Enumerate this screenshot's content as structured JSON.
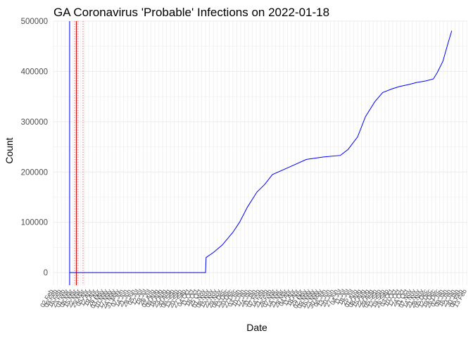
{
  "chart_data": {
    "type": "line",
    "title": "GA Coronavirus 'Probable' Infections on 2022-01-18",
    "xlabel": "Date",
    "ylabel": "Count",
    "x_type": "date",
    "xlim": [
      "2020-02-02",
      "2022-02-14"
    ],
    "ylim": [
      -25000,
      500000
    ],
    "y_ticks": [
      0,
      100000,
      200000,
      300000,
      400000,
      500000
    ],
    "y_tick_labels": [
      "0",
      "100000",
      "200000",
      "300000",
      "400000",
      "500000"
    ],
    "x_tick_step_days": 7,
    "x_tick_label_format": "day-month",
    "grid": true,
    "colors": {
      "series": "#0000ff",
      "vline_solid": "#cc0000",
      "vline_dotted": "#ff6666",
      "grid": "#ebebeb"
    },
    "vlines": [
      {
        "x": "2020-03-02",
        "style": "solid",
        "color": "#0000ff"
      },
      {
        "x": "2020-03-14",
        "style": "solid",
        "color": "#cc0000"
      },
      {
        "x": "2020-03-11",
        "style": "dotted",
        "color": "#ff6666"
      },
      {
        "x": "2020-03-17",
        "style": "dotted",
        "color": "#ff6666"
      },
      {
        "x": "2020-03-26",
        "style": "dotted",
        "color": "#ff6666"
      }
    ],
    "series": [
      {
        "x": [
          "2020-03-02",
          "2020-06-01",
          "2020-09-01",
          "2020-11-01",
          "2020-11-02",
          "2020-11-15",
          "2020-12-01",
          "2020-12-20",
          "2021-01-01",
          "2021-01-15",
          "2021-02-01",
          "2021-02-15",
          "2021-03-01",
          "2021-04-01",
          "2021-05-01",
          "2021-06-01",
          "2021-07-01",
          "2021-07-15",
          "2021-08-01",
          "2021-08-15",
          "2021-09-01",
          "2021-09-15",
          "2021-10-01",
          "2021-10-15",
          "2021-11-01",
          "2021-11-15",
          "2021-12-01",
          "2021-12-15",
          "2021-12-22",
          "2022-01-01",
          "2022-01-10",
          "2022-01-17"
        ],
        "y": [
          0,
          0,
          0,
          0,
          30000,
          40000,
          55000,
          80000,
          100000,
          130000,
          160000,
          175000,
          195000,
          210000,
          225000,
          230000,
          233000,
          245000,
          270000,
          310000,
          340000,
          358000,
          365000,
          370000,
          374000,
          378000,
          381000,
          385000,
          398000,
          420000,
          455000,
          481000
        ]
      }
    ]
  }
}
